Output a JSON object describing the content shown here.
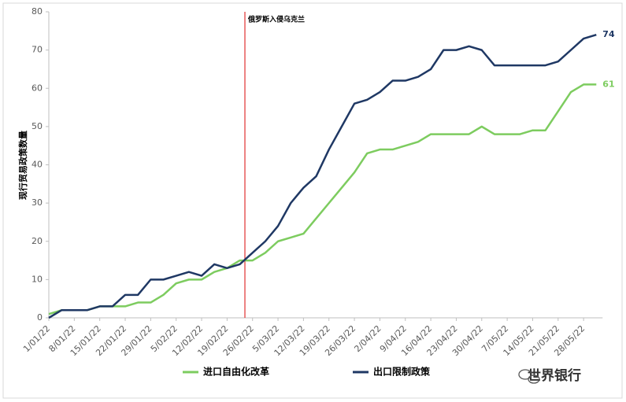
{
  "chart_data": {
    "type": "line",
    "ylabel": "现行贸易政策数量",
    "annotation": "俄罗斯入侵乌克兰",
    "watermark": "世界银行",
    "categories": [
      "1/01/22",
      null,
      "8/01/22",
      null,
      "15/01/22",
      null,
      "22/01/22",
      null,
      "29/01/22",
      null,
      "5/02/22",
      null,
      "12/02/22",
      null,
      "19/02/22",
      null,
      "26/02/22",
      null,
      "5/03/22",
      null,
      "12/03/22",
      null,
      "19/03/22",
      null,
      "26/03/22",
      null,
      "2/04/22",
      null,
      "9/04/22",
      null,
      "16/04/22",
      null,
      "23/04/22",
      null,
      "30/04/22",
      null,
      "7/05/22",
      null,
      "14/05/22",
      null,
      "21/05/22",
      null,
      "28/05/22",
      null
    ],
    "series": [
      {
        "name": "进口自由化改革",
        "color": "#7dcc5f",
        "values": [
          1,
          2,
          2,
          2,
          3,
          3,
          3,
          4,
          4,
          6,
          9,
          10,
          10,
          12,
          13,
          15,
          15,
          17,
          20,
          21,
          22,
          26,
          30,
          34,
          38,
          43,
          44,
          44,
          45,
          46,
          48,
          48,
          48,
          48,
          50,
          48,
          48,
          48,
          49,
          49,
          54,
          59,
          61,
          61
        ]
      },
      {
        "name": "出口限制政策",
        "color": "#1f3864",
        "values": [
          0,
          2,
          2,
          2,
          3,
          3,
          6,
          6,
          10,
          10,
          11,
          12,
          11,
          14,
          13,
          14,
          17,
          20,
          24,
          30,
          34,
          37,
          44,
          50,
          56,
          57,
          59,
          62,
          62,
          63,
          65,
          70,
          70,
          71,
          70,
          66,
          66,
          66,
          66,
          66,
          67,
          70,
          73,
          74
        ]
      }
    ],
    "ylim": [
      0,
      80
    ],
    "yticks": [
      0,
      10,
      20,
      30,
      40,
      50,
      60,
      70,
      80
    ]
  }
}
